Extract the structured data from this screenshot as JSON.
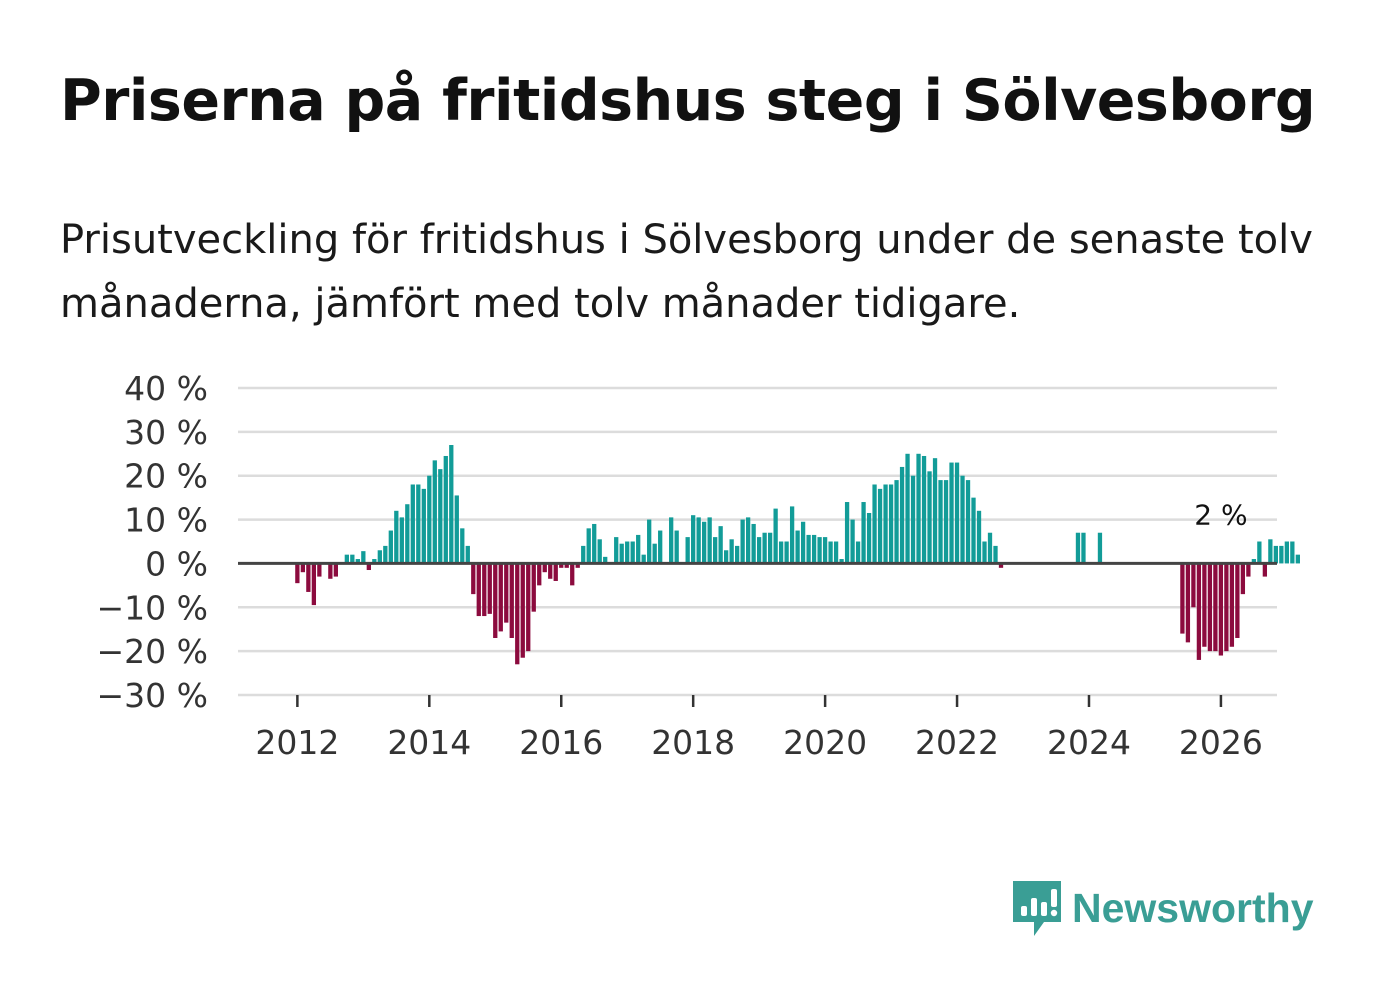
{
  "title": "Priserna på fritidshus steg i Sölvesborg",
  "subtitle": "Prisutveckling för fritidshus i Sölvesborg under de senaste tolv månaderna, jämfört med tolv månader tidigare.",
  "brand": "Newsworthy",
  "colors": {
    "positive": "#129c98",
    "negative": "#8c0b3e",
    "brand": "#3a9e95"
  },
  "chart_data": {
    "type": "bar",
    "title": "Priserna på fritidshus steg i Sölvesborg",
    "xlabel": "",
    "ylabel": "",
    "ylim": [
      -30,
      40
    ],
    "xlim": [
      2011.1,
      2026.85
    ],
    "yticks": [
      40,
      30,
      20,
      10,
      0,
      -10,
      -20,
      -30
    ],
    "ytick_labels": [
      "40 %",
      "30 %",
      "20 %",
      "10 %",
      "0 %",
      "−10 %",
      "−20 %",
      "−30 %"
    ],
    "xticks": [
      2012,
      2014,
      2016,
      2018,
      2020,
      2022,
      2024,
      2026
    ],
    "xtick_labels": [
      "2012",
      "2014",
      "2016",
      "2018",
      "2020",
      "2022",
      "2024",
      "2026"
    ],
    "grid": true,
    "annotation": {
      "text": "2 %",
      "x": 2026.0,
      "y": 2
    },
    "start": 2011.0,
    "step": 0.08333,
    "values": [
      null,
      null,
      null,
      null,
      null,
      null,
      null,
      null,
      null,
      null,
      null,
      null,
      -4.5,
      -2,
      -6.5,
      -9.5,
      -3,
      null,
      -3.5,
      -3,
      null,
      2,
      2,
      1,
      2.8,
      -1.5,
      1,
      3,
      4,
      7.5,
      12,
      10.5,
      13.5,
      18,
      18,
      17,
      20,
      23.5,
      21.5,
      24.5,
      27,
      15.5,
      8,
      4,
      -7,
      -12,
      -12,
      -11.5,
      -17,
      -15.5,
      -13.5,
      -17,
      -23,
      -21.5,
      -20,
      -11,
      -5,
      -2,
      -3.5,
      -4,
      -1,
      -1,
      -5,
      -1,
      4,
      8,
      9,
      5.5,
      1.5,
      null,
      6,
      4.5,
      5,
      5,
      6.5,
      2,
      10,
      4.5,
      7.5,
      null,
      10.5,
      7.5,
      null,
      6,
      11,
      10.5,
      9.5,
      10.5,
      6,
      8.5,
      3,
      5.5,
      4,
      10,
      10.5,
      9,
      6,
      7,
      7,
      12.5,
      5,
      5,
      13,
      7.5,
      9.5,
      6.5,
      6.5,
      6,
      6,
      5,
      5,
      1,
      14,
      10,
      5,
      14,
      11.5,
      18,
      17,
      18,
      18,
      19,
      22,
      25,
      20,
      25,
      24.5,
      21,
      24,
      19,
      19,
      23,
      23,
      20,
      19,
      15,
      12,
      5,
      7,
      4,
      -1,
      null,
      null,
      null,
      null,
      null,
      null,
      null,
      null,
      null,
      null,
      null,
      null,
      null,
      7,
      7,
      null,
      null,
      7,
      null,
      null,
      null,
      null,
      null,
      null,
      null,
      null,
      null,
      null,
      null,
      null,
      null,
      null,
      -16,
      -18,
      -10,
      -22,
      -19,
      -20,
      -20,
      -21,
      -20,
      -19,
      -17,
      -7,
      -3,
      1,
      5,
      -3,
      5.5,
      4,
      4,
      5,
      5,
      2
    ]
  }
}
